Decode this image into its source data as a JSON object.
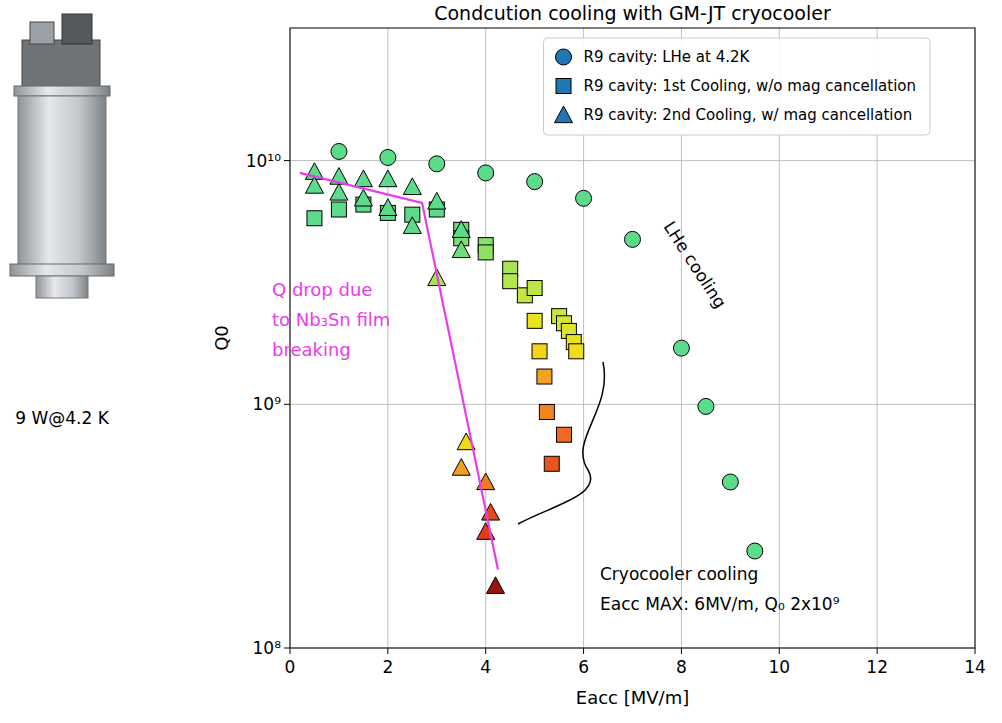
{
  "chart_data": {
    "type": "scatter",
    "title": "Condcution cooling with GM-JT cryocooler",
    "x_label": "Eacc [MV/m]",
    "y_label": "Q0",
    "xlim": [
      0,
      14
    ],
    "ylim": [
      100000000,
      35000000000
    ],
    "xticks": [
      0,
      2,
      4,
      6,
      8,
      10,
      12,
      14
    ],
    "yticks": [
      {
        "value": 100000000,
        "label": "10⁸"
      },
      {
        "value": 1000000000,
        "label": "10⁹"
      },
      {
        "value": 10000000000,
        "label": "10¹⁰"
      }
    ],
    "log": "y",
    "grid": true,
    "legend": "upper right",
    "series": [
      {
        "name": "R9 cavity: LHe at 4.2K",
        "color": "#1f77b4",
        "marker": "circle",
        "x": [
          1.0,
          2.0,
          3.0,
          4.0,
          5.0,
          6.0,
          7.0,
          8.0,
          8.5,
          9.0,
          9.5
        ],
        "values": [
          10900000000,
          10300000000,
          9700000000,
          8900000000,
          8200000000,
          7000000000,
          4750000000,
          1700000000,
          980000000,
          480000000,
          250000000
        ],
        "colors": [
          "#5cdb8b",
          "#5cdb8b",
          "#5cdb8b",
          "#5cdb8b",
          "#5cdb8b",
          "#5cdb8b",
          "#5cdb8b",
          "#5cdb8b",
          "#5cdb8b",
          "#5cdb8b",
          "#5cdb8b"
        ]
      },
      {
        "name": "R9 cavity: 1st Cooling, w/o mag cancellation",
        "color": "#1f77b4",
        "marker": "square",
        "x": [
          0.5,
          1.0,
          1.5,
          2.0,
          2.5,
          3.0,
          3.5,
          3.5,
          4.0,
          4.0,
          4.5,
          4.5,
          4.8,
          5.0,
          5.0,
          5.1,
          5.2,
          5.25,
          5.35,
          5.6,
          5.5,
          5.6,
          5.7,
          5.8,
          5.85
        ],
        "values": [
          5800000000,
          6300000000,
          6600000000,
          6100000000,
          6000000000,
          6300000000,
          5200000000,
          4800000000,
          4500000000,
          4200000000,
          3600000000,
          3200000000,
          2800000000,
          3000000000,
          2200000000,
          1650000000,
          1300000000,
          930000000,
          570000000,
          750000000,
          2300000000,
          2150000000,
          2000000000,
          1800000000,
          1650000000
        ],
        "colors": [
          "#5cdb8b",
          "#5cdb8b",
          "#5cdb8b",
          "#5cdb8b",
          "#5cdb8b",
          "#5cdb8b",
          "#6fdc7a",
          "#7ade72",
          "#86df6a",
          "#8fe064",
          "#a8e353",
          "#b4e54b",
          "#c6e63f",
          "#bde544",
          "#e8e21f",
          "#f2d21b",
          "#f3a21f",
          "#f2841f",
          "#e8541d",
          "#ef6a1f",
          "#c9e63d",
          "#d4e535",
          "#dde42b",
          "#e6e223",
          "#efdc1c"
        ]
      },
      {
        "name": "R9 cavity: 2nd Cooling, w/ mag cancellation",
        "color": "#1f77b4",
        "marker": "triangle",
        "x": [
          0.5,
          0.5,
          1.0,
          1.0,
          1.5,
          1.5,
          2.0,
          2.0,
          2.5,
          2.5,
          3.0,
          3.0,
          3.5,
          3.5,
          3.6,
          3.5,
          4.0,
          4.0,
          4.1,
          4.2
        ],
        "values": [
          9000000000,
          7900000000,
          8600000000,
          7400000000,
          8400000000,
          7000000000,
          8400000000,
          6400000000,
          7800000000,
          5400000000,
          6800000000,
          3300000000,
          5200000000,
          4300000000,
          700000000,
          550000000,
          480000000,
          300000000,
          360000000,
          180000000
        ],
        "colors": [
          "#5cdb8b",
          "#5cdb8b",
          "#5cdb8b",
          "#5cdb8b",
          "#5cdb8b",
          "#5cdb8b",
          "#5cdb8b",
          "#5cdb8b",
          "#5cdb8b",
          "#5cdb8b",
          "#5cdb8b",
          "#a8e353",
          "#5cdb8b",
          "#6fdc7a",
          "#f0d91c",
          "#f2a01f",
          "#f07a1f",
          "#e23a1c",
          "#e4481d",
          "#9c130f"
        ]
      }
    ],
    "annotations": [
      {
        "text": [
          "Q drop due",
          "to Nb₃Sn film",
          "breaking"
        ],
        "color": "#e83ee8",
        "line_x": [
          0.2,
          2.7,
          4.25
        ],
        "line_y": [
          8900000000,
          6700000000,
          210000000
        ]
      },
      {
        "text": "LHe cooling"
      },
      {
        "text": [
          "Cryocooler cooling",
          "Eacc MAX: 6MV/m, Q₀ 2x10⁹"
        ]
      }
    ],
    "figure_caption": "9 W@4.2 K"
  }
}
